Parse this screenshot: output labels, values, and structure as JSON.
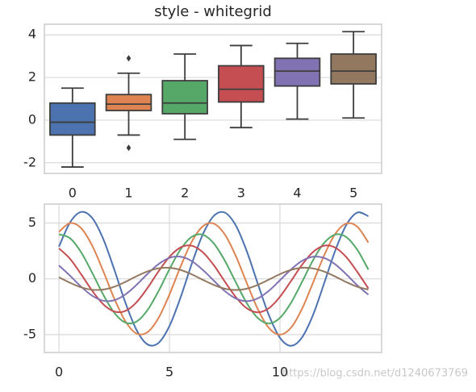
{
  "chart_data": [
    {
      "type": "box",
      "title": "style - whitegrid",
      "categories": [
        "0",
        "1",
        "2",
        "3",
        "4",
        "5"
      ],
      "colors": [
        "#4C72B0",
        "#DD8452",
        "#55A868",
        "#C44E52",
        "#8172B3",
        "#937860"
      ],
      "boxes": [
        {
          "whislo": -2.2,
          "q1": -0.7,
          "med": -0.1,
          "q3": 0.8,
          "whishi": 1.5,
          "fliers": []
        },
        {
          "whislo": -0.7,
          "q1": 0.45,
          "med": 0.75,
          "q3": 1.2,
          "whishi": 2.2,
          "fliers": [
            2.9,
            -1.3
          ]
        },
        {
          "whislo": -0.9,
          "q1": 0.3,
          "med": 0.8,
          "q3": 1.85,
          "whishi": 3.1,
          "fliers": []
        },
        {
          "whislo": -0.35,
          "q1": 0.85,
          "med": 1.45,
          "q3": 2.55,
          "whishi": 3.5,
          "fliers": []
        },
        {
          "whislo": 0.05,
          "q1": 1.6,
          "med": 2.3,
          "q3": 2.9,
          "whishi": 3.6,
          "fliers": []
        },
        {
          "whislo": 0.1,
          "q1": 1.7,
          "med": 2.3,
          "q3": 3.1,
          "whishi": 4.15,
          "fliers": []
        }
      ],
      "ylim": [
        -2.5,
        4.5
      ],
      "yticks": [
        -2,
        0,
        2,
        4
      ],
      "grid": "y"
    },
    {
      "type": "line",
      "x": [
        0,
        0.5,
        1,
        1.5,
        2,
        2.5,
        3,
        3.5,
        4,
        4.5,
        5,
        5.5,
        6,
        6.5,
        7,
        7.5,
        8,
        8.5,
        9,
        9.5,
        10,
        10.5,
        11,
        11.5,
        12,
        12.5,
        13,
        13.5,
        14
      ],
      "series": [
        {
          "color": "#4C72B0",
          "values": [
            2.88,
            5.05,
            5.99,
            5.46,
            3.59,
            0.85,
            -2.1,
            -4.54,
            -5.87,
            -5.75,
            -4.23,
            -1.68,
            1.29,
            3.94,
            5.63,
            5.94,
            4.79,
            2.47,
            -0.45,
            -3.26,
            -5.28,
            -6.0,
            -5.25,
            -3.22,
            -0.4,
            2.52,
            4.82,
            5.94,
            5.61
          ]
        },
        {
          "color": "#DD8452",
          "values": [
            4.21,
            4.99,
            4.55,
            2.99,
            0.71,
            -1.75,
            -3.78,
            -4.89,
            -4.79,
            -3.53,
            -1.4,
            1.08,
            3.29,
            4.69,
            4.95,
            3.99,
            2.06,
            -0.38,
            -2.72,
            -4.4,
            -5.0,
            -4.38,
            -2.68,
            -0.33,
            2.1,
            4.02,
            4.95,
            4.67,
            3.25
          ]
        },
        {
          "color": "#55A868",
          "values": [
            3.99,
            3.64,
            2.39,
            0.56,
            -1.4,
            -3.03,
            -3.91,
            -3.84,
            -2.82,
            -1.12,
            0.86,
            2.63,
            3.75,
            3.96,
            3.19,
            1.65,
            -0.3,
            -2.18,
            -3.52,
            -4.0,
            -3.5,
            -2.15,
            -0.27,
            1.68,
            3.22,
            3.96,
            3.74,
            2.6,
            0.83
          ]
        },
        {
          "color": "#C44E52",
          "values": [
            2.73,
            1.8,
            0.42,
            -1.05,
            -2.27,
            -2.93,
            -2.88,
            -2.12,
            -0.84,
            0.65,
            1.97,
            2.81,
            2.97,
            2.4,
            1.24,
            -0.23,
            -1.63,
            -2.64,
            -3.0,
            -2.63,
            -1.61,
            -0.2,
            1.26,
            2.41,
            2.97,
            2.8,
            1.95,
            0.62,
            -0.86
          ]
        },
        {
          "color": "#8172B3",
          "values": [
            1.2,
            0.28,
            -0.7,
            -1.51,
            -1.96,
            -1.92,
            -1.41,
            -0.56,
            0.43,
            1.31,
            1.88,
            1.98,
            1.6,
            0.82,
            -0.15,
            -1.09,
            -1.76,
            -2.0,
            -1.75,
            -1.07,
            -0.13,
            0.84,
            1.61,
            1.98,
            1.87,
            1.3,
            0.41,
            -0.58,
            -1.42
          ]
        },
        {
          "color": "#937860",
          "values": [
            0.14,
            -0.35,
            -0.76,
            -0.98,
            -0.96,
            -0.71,
            -0.28,
            0.22,
            0.66,
            0.94,
            0.99,
            0.8,
            0.41,
            -0.08,
            -0.54,
            -0.88,
            -1.0,
            -0.88,
            -0.54,
            -0.07,
            0.42,
            0.8,
            0.99,
            0.93,
            0.65,
            0.21,
            -0.29,
            -0.71,
            -0.96
          ]
        }
      ],
      "xlim": [
        -0.66,
        14.6
      ],
      "xticks": [
        0,
        5,
        10
      ],
      "ylim": [
        -6.6,
        6.7
      ],
      "yticks": [
        -5,
        0,
        5
      ],
      "grid": "both",
      "watermark": "https://blog.csdn.net/d1240673769"
    }
  ]
}
